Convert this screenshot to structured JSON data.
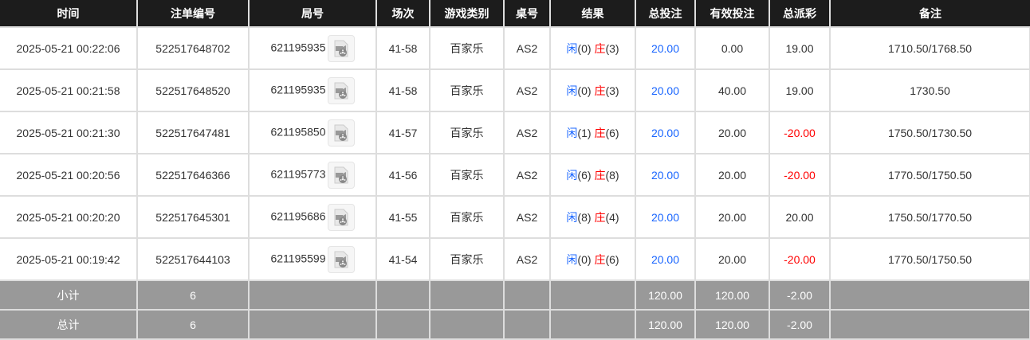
{
  "headers": [
    "时间",
    "注单编号",
    "局号",
    "场次",
    "游戏类别",
    "桌号",
    "结果",
    "总投注",
    "有效投注",
    "总派彩",
    "备注"
  ],
  "colors": {
    "player": "#1a66ff",
    "banker": "#ff0000",
    "bet": "#1a66ff",
    "loss": "#ff0000"
  },
  "rows": [
    {
      "time": "2025-05-21 00:22:06",
      "bet_id": "522517648702",
      "round": "621195935",
      "shoe": "41-58",
      "game": "百家乐",
      "table": "AS2",
      "player_label": "闲",
      "player_score": "(0)",
      "banker_label": "庄",
      "banker_score": "(3)",
      "total_bet": "20.00",
      "valid_bet": "0.00",
      "payout": "19.00",
      "note": "1710.50/1768.50"
    },
    {
      "time": "2025-05-21 00:21:58",
      "bet_id": "522517648520",
      "round": "621195935",
      "shoe": "41-58",
      "game": "百家乐",
      "table": "AS2",
      "player_label": "闲",
      "player_score": "(0)",
      "banker_label": "庄",
      "banker_score": "(3)",
      "total_bet": "20.00",
      "valid_bet": "40.00",
      "payout": "19.00",
      "note": "1730.50"
    },
    {
      "time": "2025-05-21 00:21:30",
      "bet_id": "522517647481",
      "round": "621195850",
      "shoe": "41-57",
      "game": "百家乐",
      "table": "AS2",
      "player_label": "闲",
      "player_score": "(1)",
      "banker_label": "庄",
      "banker_score": "(6)",
      "total_bet": "20.00",
      "valid_bet": "20.00",
      "payout": "-20.00",
      "note": "1750.50/1730.50"
    },
    {
      "time": "2025-05-21 00:20:56",
      "bet_id": "522517646366",
      "round": "621195773",
      "shoe": "41-56",
      "game": "百家乐",
      "table": "AS2",
      "player_label": "闲",
      "player_score": "(6)",
      "banker_label": "庄",
      "banker_score": "(8)",
      "total_bet": "20.00",
      "valid_bet": "20.00",
      "payout": "-20.00",
      "note": "1770.50/1750.50"
    },
    {
      "time": "2025-05-21 00:20:20",
      "bet_id": "522517645301",
      "round": "621195686",
      "shoe": "41-55",
      "game": "百家乐",
      "table": "AS2",
      "player_label": "闲",
      "player_score": "(8)",
      "banker_label": "庄",
      "banker_score": "(4)",
      "total_bet": "20.00",
      "valid_bet": "20.00",
      "payout": "20.00",
      "note": "1750.50/1770.50"
    },
    {
      "time": "2025-05-21 00:19:42",
      "bet_id": "522517644103",
      "round": "621195599",
      "shoe": "41-54",
      "game": "百家乐",
      "table": "AS2",
      "player_label": "闲",
      "player_score": "(0)",
      "banker_label": "庄",
      "banker_score": "(6)",
      "total_bet": "20.00",
      "valid_bet": "20.00",
      "payout": "-20.00",
      "note": "1770.50/1750.50"
    }
  ],
  "footer": [
    {
      "label": "小计",
      "count": "6",
      "total_bet": "120.00",
      "valid_bet": "120.00",
      "payout": "-2.00"
    },
    {
      "label": "总计",
      "count": "6",
      "total_bet": "120.00",
      "valid_bet": "120.00",
      "payout": "-2.00"
    }
  ]
}
